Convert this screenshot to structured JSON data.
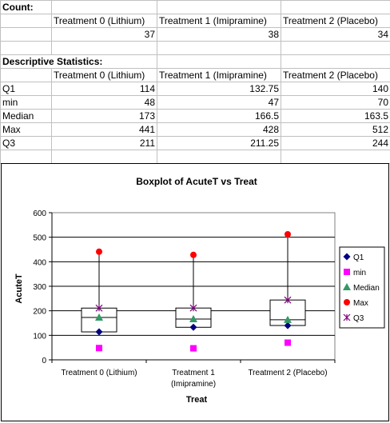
{
  "count": {
    "label": "Count:",
    "headers": [
      "Treatment 0 (Lithium)",
      "Treatment 1 (Imipramine)",
      "Treatment 2 (Placebo)"
    ],
    "values": [
      "37",
      "38",
      "34"
    ]
  },
  "stats": {
    "label": "Descriptive Statistics:",
    "headers": [
      "Treatment 0 (Lithium)",
      "Treatment 1 (Imipramine)",
      "Treatment 2 (Placebo)"
    ],
    "rows": [
      {
        "name": "Q1",
        "values": [
          "114",
          "132.75",
          "140"
        ]
      },
      {
        "name": "min",
        "values": [
          "48",
          "47",
          "70"
        ]
      },
      {
        "name": "Median",
        "values": [
          "173",
          "166.5",
          "163.5"
        ]
      },
      {
        "name": "Max",
        "values": [
          "441",
          "428",
          "512"
        ]
      },
      {
        "name": "Q3",
        "values": [
          "211",
          "211.25",
          "244"
        ]
      }
    ]
  },
  "chart_data": {
    "type": "scatter",
    "title": "Boxplot of AcuteT vs Treat",
    "xlabel": "Treat",
    "ylabel": "AcuteT",
    "ylim": [
      0,
      600
    ],
    "yticks": [
      "0",
      "100",
      "200",
      "300",
      "400",
      "500",
      "600"
    ],
    "categories": [
      "Treatment 0 (Lithium)",
      "Treatment 1 (Imipramine)",
      "Treatment 2 (Placebo)"
    ],
    "grid": true,
    "legend_position": "right",
    "series": [
      {
        "name": "Q1",
        "marker": "diamond",
        "color": "#000080",
        "values": [
          114,
          132.75,
          140
        ]
      },
      {
        "name": "min",
        "marker": "square",
        "color": "#ff00ff",
        "values": [
          48,
          47,
          70
        ]
      },
      {
        "name": "Median",
        "marker": "triangle",
        "color": "#339966",
        "values": [
          173,
          166.5,
          163.5
        ]
      },
      {
        "name": "Max",
        "marker": "circle",
        "color": "#ff0000",
        "values": [
          441,
          428,
          512
        ]
      },
      {
        "name": "Q3",
        "marker": "star",
        "color": "#800080",
        "values": [
          211,
          211.25,
          244
        ]
      }
    ]
  }
}
